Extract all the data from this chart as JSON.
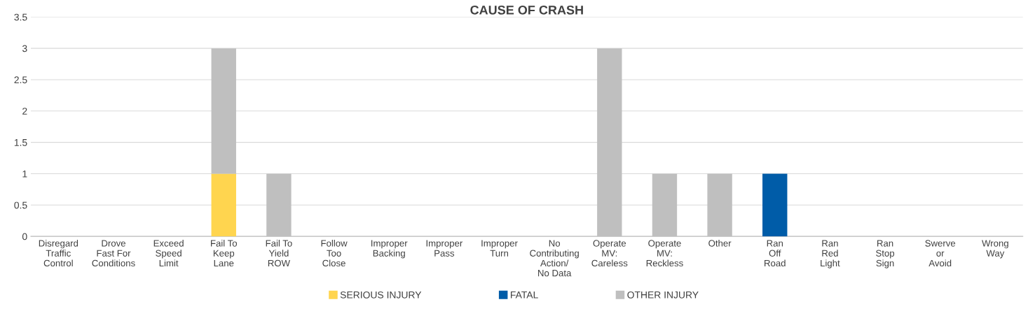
{
  "chart_data": {
    "type": "bar",
    "title": "CAUSE OF CRASH",
    "stacked": true,
    "categories": [
      "Disregard\nTraffic\nControl",
      "Drove\nFast For\nConditions",
      "Exceed\nSpeed\nLimit",
      "Fail To\nKeep\nLane",
      "Fail To\nYield\nROW",
      "Follow\nToo\nClose",
      "Improper\nBacking",
      "Improper\nPass",
      "Improper\nTurn",
      "No\nContributing\nAction/\nNo Data",
      "Operate\nMV:\nCareless",
      "Operate\nMV:\nReckless",
      "Other",
      "Ran\nOff\nRoad",
      "Ran\nRed\nLight",
      "Ran\nStop\nSign",
      "Swerve\nor\nAvoid",
      "Wrong\nWay"
    ],
    "series": [
      {
        "name": "SERIOUS INJURY",
        "color": "#ffd54f",
        "values": [
          0,
          0,
          0,
          1,
          0,
          0,
          0,
          0,
          0,
          0,
          0,
          0,
          0,
          0,
          0,
          0,
          0,
          0
        ]
      },
      {
        "name": "FATAL",
        "color": "#005ca8",
        "values": [
          0,
          0,
          0,
          0,
          0,
          0,
          0,
          0,
          0,
          0,
          0,
          0,
          0,
          1,
          0,
          0,
          0,
          0
        ]
      },
      {
        "name": "OTHER INJURY",
        "color": "#bfbfbf",
        "values": [
          0,
          0,
          0,
          2,
          1,
          0,
          0,
          0,
          0,
          0,
          3,
          1,
          1,
          0,
          0,
          0,
          0,
          0
        ]
      }
    ],
    "ylim": [
      0,
      3.5
    ],
    "yticks": [
      0,
      0.5,
      1,
      1.5,
      2,
      2.5,
      3,
      3.5
    ],
    "grid": "y",
    "legend": "bottom"
  }
}
